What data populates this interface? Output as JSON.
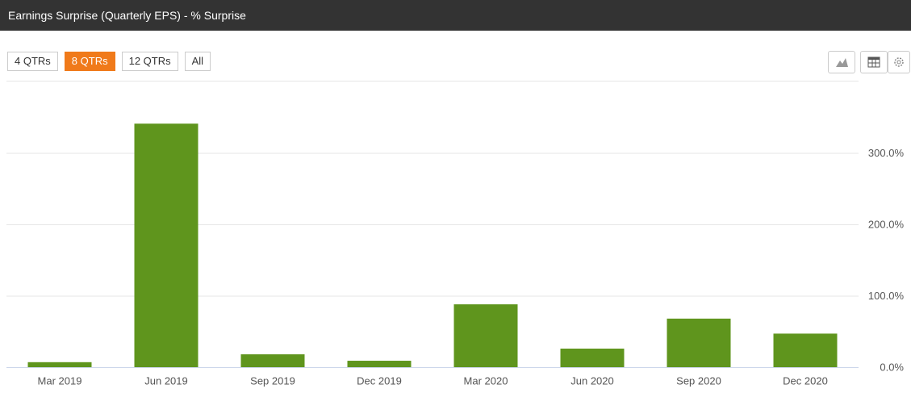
{
  "controls": {
    "ranges": [
      "4 QTRs",
      "8 QTRs",
      "12 QTRs",
      "All"
    ],
    "active": 1
  },
  "chart_data": {
    "type": "bar",
    "title": "Earnings Surprise (Quarterly EPS) - % Surprise",
    "categories": [
      "Mar 2019",
      "Jun 2019",
      "Sep 2019",
      "Dec 2019",
      "Mar 2020",
      "Jun 2020",
      "Sep 2020",
      "Dec 2020"
    ],
    "values": [
      7,
      341,
      18,
      9,
      88,
      26,
      68,
      47
    ],
    "color": "#5f951d",
    "ylim": [
      0,
      400
    ],
    "yticks": [
      {
        "value": 0,
        "label": "0.0%"
      },
      {
        "value": 100,
        "label": "100.0%"
      },
      {
        "value": 200,
        "label": "200.0%"
      },
      {
        "value": 300,
        "label": "300.0%"
      }
    ],
    "grid": true
  }
}
